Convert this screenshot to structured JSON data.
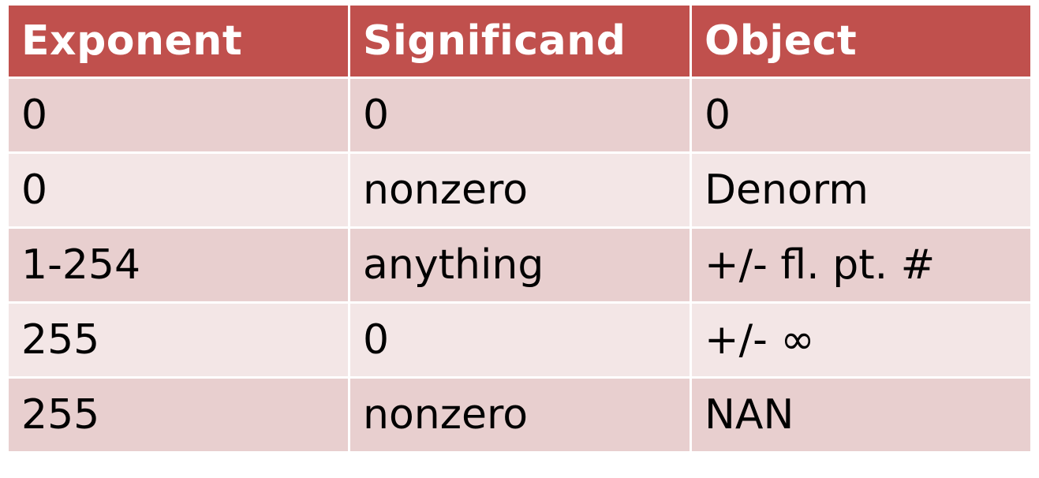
{
  "table": {
    "headers": [
      "Exponent",
      "Significand",
      "Object"
    ],
    "rows": [
      [
        "0",
        "0",
        "0"
      ],
      [
        "0",
        "nonzero",
        "Denorm"
      ],
      [
        "1-254",
        "anything",
        "+/- fl. pt. #"
      ],
      [
        "255",
        "0",
        "+/- ∞"
      ],
      [
        "255",
        "nonzero",
        "NAN"
      ]
    ]
  },
  "colors": {
    "header_bg": "#c0504d",
    "header_text": "#ffffff",
    "row_odd_bg": "#e8cfcf",
    "row_even_bg": "#f3e6e6",
    "border": "#ffffff"
  }
}
